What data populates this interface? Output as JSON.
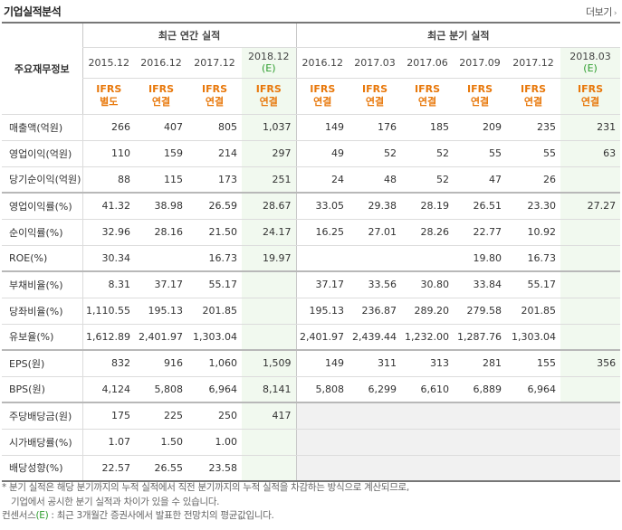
{
  "header": {
    "title": "기업실적분석",
    "more_label": "더보기",
    "more_icon": "chevron-right-icon"
  },
  "table": {
    "row_header_label": "주요재무정보",
    "group_annual": "최근 연간 실적",
    "group_quarter": "최근 분기 실적",
    "columns": [
      {
        "period": "2015.12",
        "type1": "IFRS",
        "type2": "별도",
        "estimate": false
      },
      {
        "period": "2016.12",
        "type1": "IFRS",
        "type2": "연결",
        "estimate": false
      },
      {
        "period": "2017.12",
        "type1": "IFRS",
        "type2": "연결",
        "estimate": false
      },
      {
        "period": "2018.12",
        "period_note": "(E)",
        "type1": "IFRS",
        "type2": "연결",
        "estimate": true
      },
      {
        "period": "2016.12",
        "type1": "IFRS",
        "type2": "연결",
        "estimate": false
      },
      {
        "period": "2017.03",
        "type1": "IFRS",
        "type2": "연결",
        "estimate": false
      },
      {
        "period": "2017.06",
        "type1": "IFRS",
        "type2": "연결",
        "estimate": false
      },
      {
        "period": "2017.09",
        "type1": "IFRS",
        "type2": "연결",
        "estimate": false
      },
      {
        "period": "2017.12",
        "type1": "IFRS",
        "type2": "연결",
        "estimate": false
      },
      {
        "period": "2018.03",
        "period_note": "(E)",
        "type1": "IFRS",
        "type2": "연결",
        "estimate": true
      }
    ],
    "rows": [
      {
        "label": "매출액(억원)",
        "values": [
          "266",
          "407",
          "805",
          "1,037",
          "149",
          "176",
          "185",
          "209",
          "235",
          "231"
        ]
      },
      {
        "label": "영업이익(억원)",
        "values": [
          "110",
          "159",
          "214",
          "297",
          "49",
          "52",
          "52",
          "55",
          "55",
          "63"
        ]
      },
      {
        "label": "당기순이익(억원)",
        "values": [
          "88",
          "115",
          "173",
          "251",
          "24",
          "48",
          "52",
          "47",
          "26",
          ""
        ]
      },
      {
        "label": "영업이익률(%)",
        "values": [
          "41.32",
          "38.98",
          "26.59",
          "28.67",
          "33.05",
          "29.38",
          "28.19",
          "26.51",
          "23.30",
          "27.27"
        ]
      },
      {
        "label": "순이익률(%)",
        "values": [
          "32.96",
          "28.16",
          "21.50",
          "24.17",
          "16.25",
          "27.01",
          "28.26",
          "22.77",
          "10.92",
          ""
        ]
      },
      {
        "label": "ROE(%)",
        "values": [
          "30.34",
          "",
          "16.73",
          "19.97",
          "",
          "",
          "",
          "19.80",
          "16.73",
          ""
        ]
      },
      {
        "label": "부채비율(%)",
        "values": [
          "8.31",
          "37.17",
          "55.17",
          "",
          "37.17",
          "33.56",
          "30.80",
          "33.84",
          "55.17",
          ""
        ]
      },
      {
        "label": "당좌비율(%)",
        "values": [
          "1,110.55",
          "195.13",
          "201.85",
          "",
          "195.13",
          "236.87",
          "289.20",
          "279.58",
          "201.85",
          ""
        ]
      },
      {
        "label": "유보율(%)",
        "values": [
          "1,612.89",
          "2,401.97",
          "1,303.04",
          "",
          "2,401.97",
          "2,439.44",
          "1,232.00",
          "1,287.76",
          "1,303.04",
          ""
        ]
      },
      {
        "label": "EPS(원)",
        "values": [
          "832",
          "916",
          "1,060",
          "1,509",
          "149",
          "311",
          "313",
          "281",
          "155",
          "356"
        ]
      },
      {
        "label": "BPS(원)",
        "values": [
          "4,124",
          "5,808",
          "6,964",
          "8,141",
          "5,808",
          "6,299",
          "6,610",
          "6,889",
          "6,964",
          ""
        ]
      },
      {
        "label": "주당배당금(원)",
        "values": [
          "175",
          "225",
          "250",
          "417",
          "",
          "",
          "",
          "",
          "",
          ""
        ]
      },
      {
        "label": "시가배당률(%)",
        "values": [
          "1.07",
          "1.50",
          "1.00",
          "",
          "",
          "",
          "",
          "",
          "",
          ""
        ]
      },
      {
        "label": "배당성향(%)",
        "values": [
          "22.57",
          "26.55",
          "23.58",
          "",
          "",
          "",
          "",
          "",
          "",
          ""
        ]
      }
    ]
  },
  "notes": {
    "line1": "* 분기 실적은 해당 분기까지의 누적 실적에서 직전 분기까지의 누적 실적을 차감하는 방식으로 계산되므로,",
    "line2": "기업에서 공시한 분기 실적과 차이가 있을 수 있습니다.",
    "line3_prefix": "컨센서스",
    "line3_mark": "(E)",
    "line3_suffix": " : 최근 3개월간 증권사에서 발표한 전망치의 평균값입니다."
  },
  "colors": {
    "ifrs_orange": "#e8780b",
    "estimate_green": "#2e9d2e",
    "estimate_bg": "#f1f9ef",
    "empty_bg": "#f1f1f1"
  }
}
